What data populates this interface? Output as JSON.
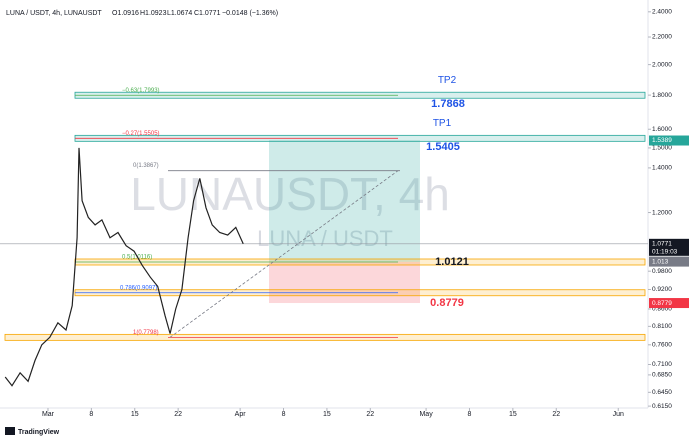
{
  "chart_data": {
    "type": "line",
    "header": {
      "symbol": "LUNA / USDT, 4h, LUNAUSDT",
      "ohlc": [
        "O1.0916",
        "H1.0923",
        "L1.0674",
        "C1.0771"
      ],
      "change": "−0.0148 (−1.36%)"
    },
    "watermark": [
      "LUNAUSDT, 4h",
      "LUNA / USDT"
    ],
    "brand": "TradingView",
    "log_scale": true,
    "ylim": [
      0.611,
      2.5
    ],
    "xlim": [
      -7.74,
      96.8
    ],
    "yticks": [
      {
        "value": 2.4,
        "label": "2.4000"
      },
      {
        "value": 2.2,
        "label": "2.2000"
      },
      {
        "value": 2.0,
        "label": "2.0000"
      },
      {
        "value": 1.8,
        "label": "1.8000"
      },
      {
        "value": 1.6,
        "label": "1.6000"
      },
      {
        "value": 1.5,
        "label": "1.5000"
      },
      {
        "value": 1.4,
        "label": "1.4000"
      },
      {
        "value": 1.2,
        "label": "1.2000"
      },
      {
        "value": 0.98,
        "label": "0.9800"
      },
      {
        "value": 0.92,
        "label": "0.9200"
      },
      {
        "value": 0.86,
        "label": "0.8600"
      },
      {
        "value": 0.81,
        "label": "0.8100"
      },
      {
        "value": 0.76,
        "label": "0.7600"
      },
      {
        "value": 0.71,
        "label": "0.7100"
      },
      {
        "value": 0.685,
        "label": "0.6850"
      },
      {
        "value": 0.645,
        "label": "0.6450"
      },
      {
        "value": 0.615,
        "label": "0.6150"
      }
    ],
    "xticks": [
      {
        "value": 0,
        "label": "Mar"
      },
      {
        "value": 7,
        "label": "8"
      },
      {
        "value": 14,
        "label": "15"
      },
      {
        "value": 21,
        "label": "22"
      },
      {
        "value": 31,
        "label": "Apr"
      },
      {
        "value": 38,
        "label": "8"
      },
      {
        "value": 45,
        "label": "15"
      },
      {
        "value": 52,
        "label": "22"
      },
      {
        "value": 61,
        "label": "May"
      },
      {
        "value": 68,
        "label": "8"
      },
      {
        "value": 75,
        "label": "15"
      },
      {
        "value": 82,
        "label": "22"
      },
      {
        "value": 92,
        "label": "Jun"
      }
    ],
    "series": [
      {
        "name": "LUNAUSDT",
        "color": "#222222",
        "x": [
          -6.9,
          -5.8,
          -4.5,
          -3.2,
          -2.1,
          -1.0,
          0.3,
          1.6,
          2.9,
          3.9,
          4.7,
          5.0,
          5.5,
          6.5,
          7.6,
          8.7,
          10.0,
          11.3,
          12.6,
          13.9,
          15.2,
          16.5,
          17.7,
          18.9,
          19.7,
          20.6,
          21.6,
          22.6,
          23.5,
          24.5,
          25.5,
          26.5,
          27.7,
          29.0,
          30.3,
          31.5
        ],
        "values": [
          0.68,
          0.66,
          0.69,
          0.67,
          0.72,
          0.76,
          0.78,
          0.82,
          0.8,
          0.87,
          1.1,
          1.5,
          1.25,
          1.18,
          1.15,
          1.17,
          1.1,
          1.12,
          1.07,
          1.05,
          1.0,
          0.96,
          0.93,
          0.84,
          0.79,
          0.86,
          0.92,
          1.1,
          1.25,
          1.35,
          1.22,
          1.15,
          1.12,
          1.11,
          1.14,
          1.0771
        ]
      }
    ],
    "levels": [
      {
        "label": "−0.63(1.7993)",
        "value": 1.7993,
        "color": "#26a69a",
        "label_color": "#4caf50"
      },
      {
        "label": "−0.27(1.5505)",
        "value": 1.5505,
        "color": "#26a69a",
        "label_color": "#f23645"
      },
      {
        "label": "0(1.3867)",
        "value": 1.3867,
        "color": "#9598a1",
        "label_color": "#787b86"
      },
      {
        "label": "0.5(1.0116)",
        "value": 1.0116,
        "color": "#f7a600",
        "label_color": "#4caf50"
      },
      {
        "label": "0.786(0.9097)",
        "value": 0.9097,
        "color": "#f7a600",
        "label_color": "#2962ff"
      },
      {
        "label": "1(0.7798)",
        "value": 0.7798,
        "color": "#f7a600",
        "label_color": "#f23645"
      }
    ],
    "targets": [
      {
        "name": "TP2",
        "value": 1.7868,
        "color": "#1e53e5"
      },
      {
        "name": "TP1",
        "value": 1.5405,
        "color": "#1e53e5"
      }
    ],
    "entry": 1.0121,
    "stop": 0.8779,
    "price_badges": [
      {
        "value": 1.5389,
        "color": "#26a69a"
      },
      {
        "value": 1.0771,
        "color": "#131722"
      },
      {
        "value": 1.013,
        "color": "#787b86"
      },
      {
        "value": 0.8779,
        "color": "#f23645"
      }
    ],
    "countdown": "01:19:03"
  }
}
